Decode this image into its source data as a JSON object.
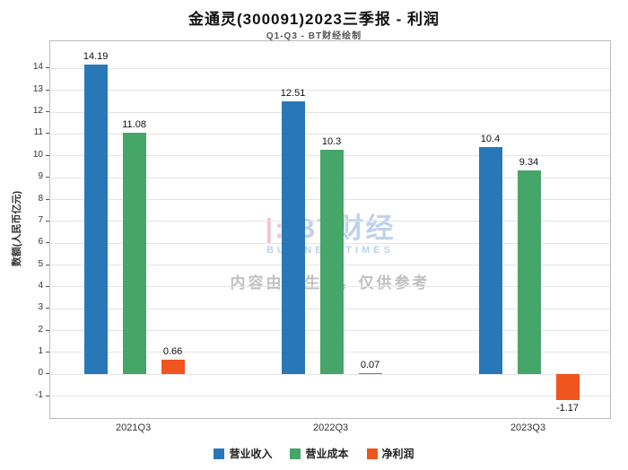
{
  "title": "金通灵(300091)2023三季报 - 利润",
  "subtitle": "Q1-Q3 - BT财经绘制",
  "watermark": {
    "brand_mark": "|:|",
    "brand": "BT财经",
    "brand_sub": "BUSINESSTIMES",
    "disclaimer": "内容由AI生成，仅供参考"
  },
  "chart_data": {
    "type": "bar",
    "categories": [
      "2021Q3",
      "2022Q3",
      "2023Q3"
    ],
    "series": [
      {
        "name": "营业收入",
        "color": "#2878b8",
        "values": [
          14.19,
          12.51,
          10.4
        ]
      },
      {
        "name": "营业成本",
        "color": "#46a569",
        "values": [
          11.08,
          10.3,
          9.34
        ]
      },
      {
        "name": "净利润",
        "color": "#f0541f",
        "values": [
          0.66,
          0.07,
          -1.17
        ]
      }
    ],
    "title": "金通灵(300091)2023三季报 - 利润",
    "xlabel": "",
    "ylabel": "数额(人民币亿元)",
    "ylim": [
      -2.0,
      15.25
    ],
    "yticks": [
      -1,
      0,
      1,
      2,
      3,
      4,
      5,
      6,
      7,
      8,
      9,
      10,
      11,
      12,
      13,
      14
    ],
    "grid": true,
    "legend_position": "bottom"
  }
}
